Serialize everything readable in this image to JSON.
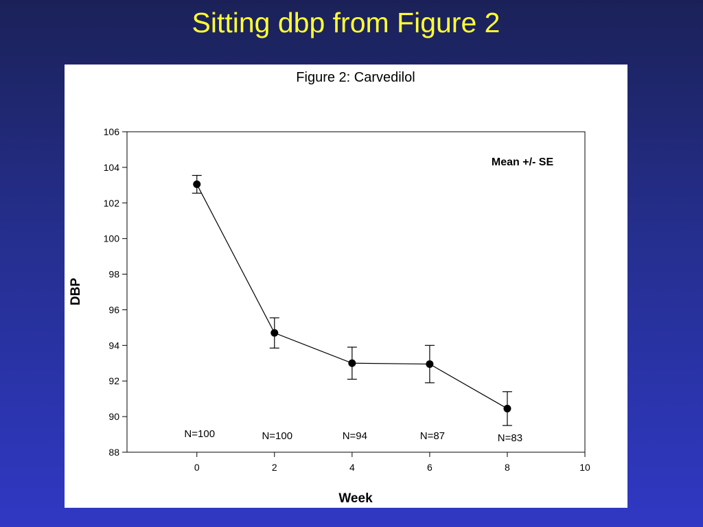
{
  "slide": {
    "title": "Sitting dbp from Figure 2"
  },
  "chart_data": {
    "type": "line",
    "title": "Figure 2: Carvedilol",
    "xlabel": "Week",
    "ylabel": "DBP",
    "xlim": [
      -1.8,
      10
    ],
    "ylim": [
      88,
      106
    ],
    "xticks": [
      0,
      2,
      4,
      6,
      8,
      10
    ],
    "yticks": [
      88,
      90,
      92,
      94,
      96,
      98,
      100,
      102,
      104,
      106
    ],
    "grid": false,
    "annotation": "Mean +/- SE",
    "series": [
      {
        "x": [
          0,
          2,
          4,
          6,
          8
        ],
        "y": [
          103.05,
          94.7,
          93.0,
          92.95,
          90.45
        ],
        "se": [
          0.5,
          0.85,
          0.9,
          1.05,
          0.95
        ],
        "n_labels": [
          "N=100",
          "N=100",
          "N=94",
          "N=87",
          "N=83"
        ]
      }
    ]
  }
}
